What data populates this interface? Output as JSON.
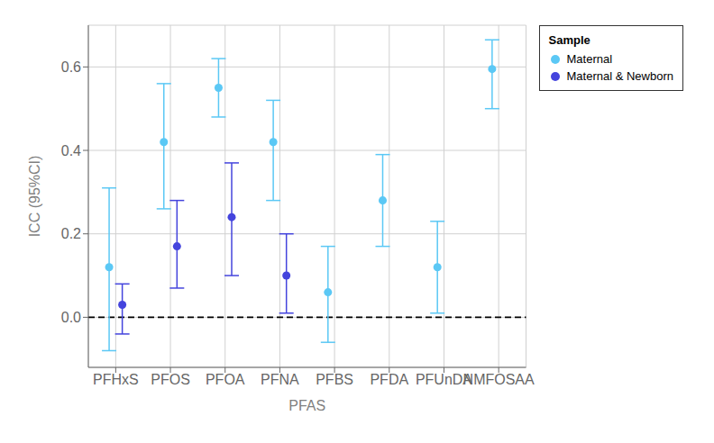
{
  "chart_data": {
    "type": "scatter",
    "xlabel": "PFAS",
    "ylabel": "ICC (95%CI)",
    "categories": [
      "PFHxS",
      "PFOS",
      "PFOA",
      "PFNA",
      "PFBS",
      "PFDA",
      "PFUnDA",
      "NMFOSAA"
    ],
    "series": [
      {
        "name": "Maternal",
        "color": "#5bc8f5",
        "marker": "circle",
        "values": [
          0.12,
          0.42,
          0.55,
          0.42,
          0.06,
          0.28,
          0.12,
          0.595
        ],
        "err_low": [
          0.2,
          0.16,
          0.07,
          0.14,
          0.12,
          0.11,
          0.11,
          0.095
        ],
        "err_high": [
          0.19,
          0.14,
          0.07,
          0.1,
          0.11,
          0.11,
          0.11,
          0.07
        ]
      },
      {
        "name": "Maternal & Newborn",
        "color": "#4444dd",
        "marker": "circle",
        "values": [
          0.03,
          0.17,
          0.24,
          0.1,
          null,
          null,
          null,
          null
        ],
        "err_low": [
          0.07,
          0.1,
          0.14,
          0.09,
          null,
          null,
          null,
          null
        ],
        "err_high": [
          0.05,
          0.11,
          0.13,
          0.1,
          null,
          null,
          null,
          null
        ]
      }
    ],
    "ylim": [
      -0.12,
      0.7
    ],
    "yticks": [
      {
        "value": 0,
        "label": "0.0"
      },
      0.2,
      0.4,
      0.6
    ],
    "grid": true,
    "legend": "right",
    "legend_title": "Sample",
    "reference_line": {
      "y": 0,
      "color": "#000000",
      "line_style": "dashed"
    }
  }
}
